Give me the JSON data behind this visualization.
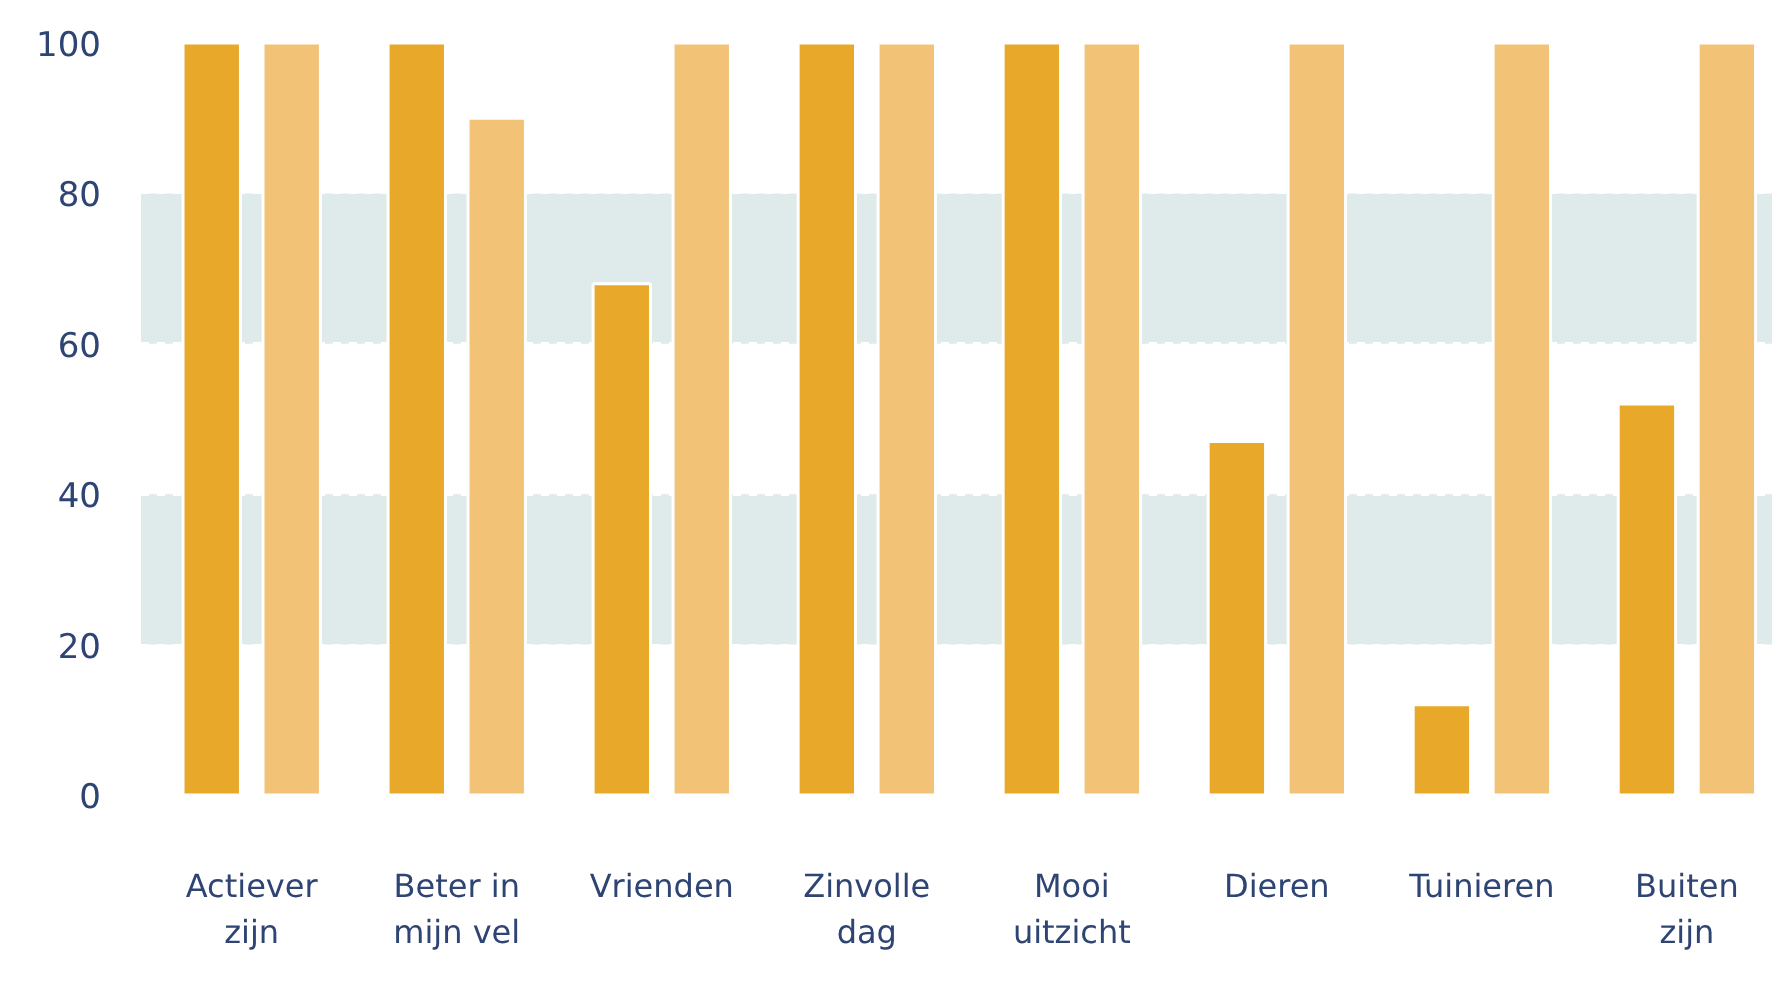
{
  "chart_data": {
    "type": "bar",
    "categories": [
      "Actiever\nzijn",
      "Beter in\nmijn vel",
      "Vrienden",
      "Zinvolle\ndag",
      "Mooi\nuitzicht",
      "Dieren",
      "Tuinieren",
      "Buiten\nzijn"
    ],
    "series": [
      {
        "color": "#e8a92a",
        "values": [
          100,
          100,
          68,
          100,
          100,
          47,
          12,
          52
        ]
      },
      {
        "color": "#f2c277",
        "values": [
          100,
          90,
          100,
          100,
          100,
          100,
          100,
          100
        ]
      }
    ],
    "ylim": [
      0,
      100
    ],
    "yticks": [
      0,
      20,
      40,
      60,
      80,
      100
    ],
    "grid": "y"
  }
}
